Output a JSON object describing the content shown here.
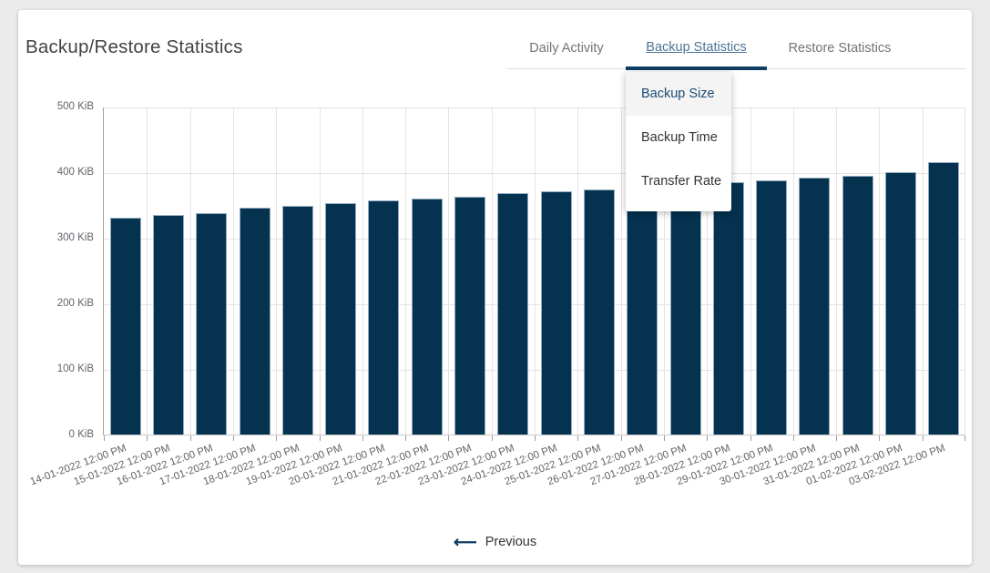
{
  "header": {
    "title": "Backup/Restore Statistics"
  },
  "tabs": [
    {
      "label": "Daily Activity",
      "active": false
    },
    {
      "label": "Backup Statistics",
      "active": true
    },
    {
      "label": "Restore Statistics",
      "active": false
    }
  ],
  "dropdown": {
    "items": [
      {
        "label": "Backup Size",
        "selected": true
      },
      {
        "label": "Backup Time",
        "selected": false
      },
      {
        "label": "Transfer Rate",
        "selected": false
      }
    ]
  },
  "pager": {
    "previous_label": "Previous",
    "arrow_icon": "left-arrow"
  },
  "colors": {
    "bar_fill": "#04324f",
    "bar_border": "#93acc1",
    "active_tab_underline": "#0f3d63",
    "active_tab_text": "#4d7496",
    "inactive_tab_text": "#6f757a",
    "selected_item_text": "#1c4a72",
    "page_background": "#ebebeb"
  },
  "chart_data": {
    "type": "bar",
    "title": "Backup Size per day",
    "categories": [
      "14-01-2022 12:00 PM",
      "15-01-2022 12:00 PM",
      "16-01-2022 12:00 PM",
      "17-01-2022 12:00 PM",
      "18-01-2022 12:00 PM",
      "19-01-2022 12:00 PM",
      "20-01-2022 12:00 PM",
      "21-01-2022 12:00 PM",
      "22-01-2022 12:00 PM",
      "23-01-2022 12:00 PM",
      "24-01-2022 12:00 PM",
      "25-01-2022 12:00 PM",
      "26-01-2022 12:00 PM",
      "27-01-2022 12:00 PM",
      "28-01-2022 12:00 PM",
      "29-01-2022 12:00 PM",
      "30-01-2022 12:00 PM",
      "31-01-2022 12:00 PM",
      "01-02-2022 12:00 PM",
      "03-02-2022 12:00 PM"
    ],
    "values": [
      331,
      335,
      338,
      346,
      349,
      353,
      357,
      360,
      363,
      368,
      371,
      374,
      378,
      381,
      385,
      388,
      392,
      395,
      400,
      415
    ],
    "unit": "KiB",
    "xlabel": "",
    "ylabel": "",
    "ylim": [
      0,
      500
    ],
    "yticks": [
      0,
      100,
      200,
      300,
      400,
      500
    ],
    "ytick_labels": [
      "0 KiB",
      "100 KiB",
      "200 KiB",
      "300 KiB",
      "400 KiB",
      "500 KiB"
    ],
    "grid": true,
    "legend": false
  }
}
